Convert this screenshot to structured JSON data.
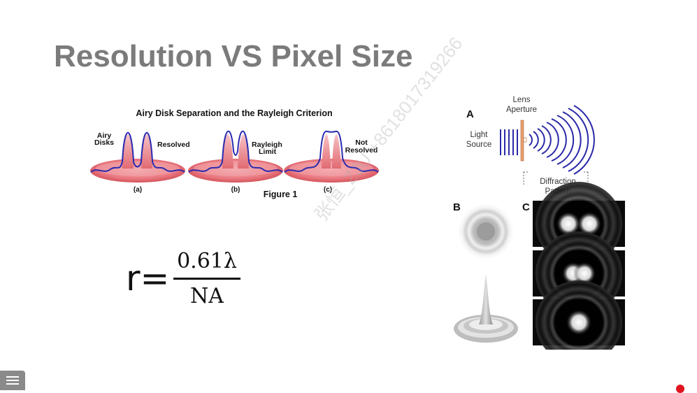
{
  "slide": {
    "title": "Resolution VS Pixel Size"
  },
  "figure1": {
    "heading": "Airy Disk Separation and the Rayleigh Criterion",
    "label_airy": "Airy",
    "label_disks": "Disks",
    "label_resolved": "Resolved",
    "label_rayleigh": "Rayleigh",
    "label_limit": "Limit",
    "label_not": "Not",
    "label_not_resolved": "Resolved",
    "sub_a": "(a)",
    "sub_b": "(b)",
    "sub_c": "(c)",
    "caption": "Figure 1"
  },
  "formula": {
    "lhs": "r=",
    "numerator": "0.61λ",
    "denominator": "NA"
  },
  "diagram": {
    "panel_a": "A",
    "panel_b": "B",
    "panel_c": "C",
    "lens": "Lens",
    "aperture": "Aperture",
    "light": "Light",
    "source": "Source",
    "diffraction": "Diffraction",
    "pattern": "Pattern"
  },
  "watermark": "张恒_ZJU +8618017319266",
  "colors": {
    "title": "#7b7b7b",
    "disk_fill": "#e8727a",
    "profile_line": "#2b2bb0",
    "wave": "#2a2aa8",
    "red_dot": "#e0141e"
  }
}
